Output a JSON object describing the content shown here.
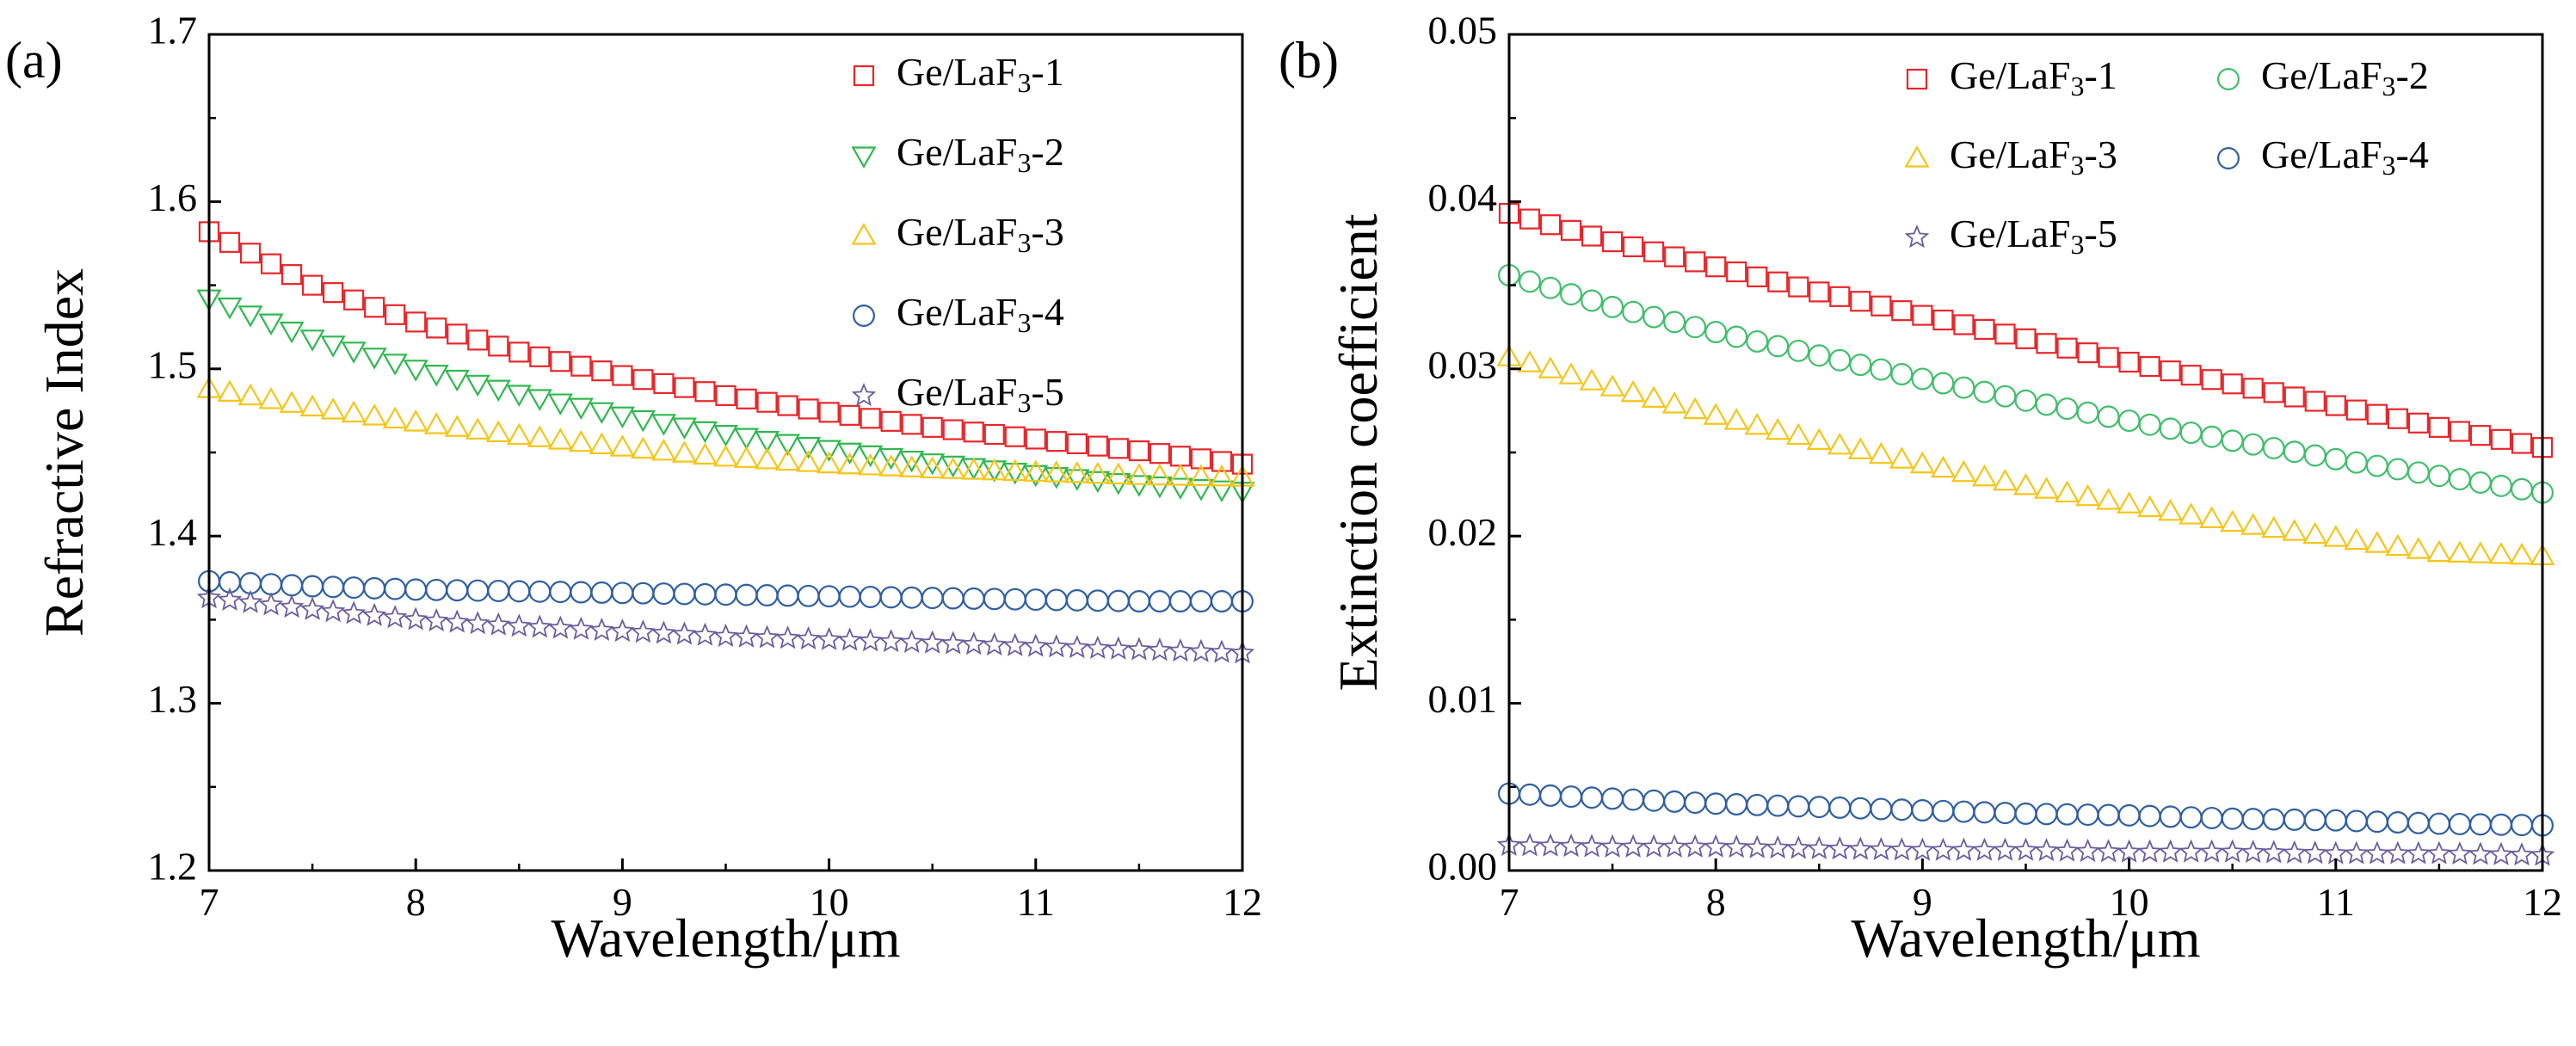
{
  "chart_data": [
    {
      "type": "scatter",
      "panel_label": "(a)",
      "xlabel": "Wavelength/μm",
      "ylabel": "Refractive Index",
      "xlim": [
        7,
        12
      ],
      "ylim": [
        1.2,
        1.7
      ],
      "xticks": [
        "7",
        "8",
        "9",
        "10",
        "11",
        "12"
      ],
      "yticks": [
        "1.2",
        "1.3",
        "1.4",
        "1.5",
        "1.6",
        "1.7"
      ],
      "legend_position": "top-right",
      "legend_columns": 1,
      "x": {
        "start": 7,
        "end": 12,
        "count": 51
      },
      "series": [
        {
          "name": "Ge/LaF3-1",
          "label_main": "Ge/LaF",
          "label_sub": "3",
          "label_suffix": "-1",
          "marker": "square",
          "color": "#e8262a",
          "values": [
            1.582,
            1.55,
            1.528,
            1.51,
            1.496,
            1.484,
            1.474,
            1.465,
            1.458,
            1.451,
            1.443
          ]
        },
        {
          "name": "Ge/LaF3-2",
          "label_main": "Ge/LaF",
          "label_sub": "3",
          "label_suffix": "-2",
          "marker": "triangle-down",
          "color": "#2fb84f",
          "values": [
            1.542,
            1.518,
            1.5,
            1.485,
            1.472,
            1.461,
            1.452,
            1.444,
            1.437,
            1.431,
            1.427
          ]
        },
        {
          "name": "Ge/LaF3-3",
          "label_main": "Ge/LaF",
          "label_sub": "3",
          "label_suffix": "-3",
          "marker": "triangle-up",
          "color": "#f5c518",
          "values": [
            1.488,
            1.477,
            1.468,
            1.46,
            1.453,
            1.447,
            1.443,
            1.44,
            1.438,
            1.436,
            1.435
          ]
        },
        {
          "name": "Ge/LaF3-4",
          "label_main": "Ge/LaF",
          "label_sub": "3",
          "label_suffix": "-4",
          "marker": "circle",
          "color": "#2f5fa3",
          "values": [
            1.373,
            1.37,
            1.368,
            1.367,
            1.366,
            1.365,
            1.364,
            1.363,
            1.362,
            1.361,
            1.361
          ]
        },
        {
          "name": "Ge/LaF3-5",
          "label_main": "Ge/LaF",
          "label_sub": "3",
          "label_suffix": "-5",
          "marker": "star",
          "color": "#6a5c9e",
          "values": [
            1.363,
            1.356,
            1.35,
            1.346,
            1.343,
            1.34,
            1.338,
            1.336,
            1.334,
            1.332,
            1.33
          ]
        }
      ]
    },
    {
      "type": "scatter",
      "panel_label": "(b)",
      "xlabel": "Wavelength/μm",
      "ylabel": "Extinction coefficient",
      "xlim": [
        7,
        12
      ],
      "ylim": [
        0,
        0.05
      ],
      "xticks": [
        "7",
        "8",
        "9",
        "10",
        "11",
        "12"
      ],
      "yticks": [
        "0.00",
        "0.01",
        "0.02",
        "0.03",
        "0.04",
        "0.05"
      ],
      "legend_position": "top-right",
      "legend_columns": 2,
      "x": {
        "start": 7,
        "end": 12,
        "count": 51
      },
      "series": [
        {
          "name": "Ge/LaF3-1",
          "label_main": "Ge/LaF",
          "label_sub": "3",
          "label_suffix": "-1",
          "marker": "square",
          "color": "#e8262a",
          "values": [
            0.0393,
            0.0376,
            0.0361,
            0.0346,
            0.0332,
            0.0318,
            0.0304,
            0.0291,
            0.0278,
            0.0265,
            0.0253
          ]
        },
        {
          "name": "Ge/LaF3-2",
          "label_main": "Ge/LaF",
          "label_sub": "3",
          "label_suffix": "-2",
          "marker": "circle",
          "color": "#3fbf6a",
          "values": [
            0.0356,
            0.0337,
            0.0322,
            0.0308,
            0.0294,
            0.0281,
            0.0269,
            0.0257,
            0.0246,
            0.0236,
            0.0226
          ]
        },
        {
          "name": "Ge/LaF3-3",
          "label_main": "Ge/LaF",
          "label_sub": "3",
          "label_suffix": "-3",
          "marker": "triangle-up",
          "color": "#f5c518",
          "values": [
            0.0307,
            0.0289,
            0.0272,
            0.0257,
            0.0243,
            0.023,
            0.0219,
            0.0208,
            0.0199,
            0.019,
            0.0188
          ]
        },
        {
          "name": "Ge/LaF3-4",
          "label_main": "Ge/LaF",
          "label_sub": "3",
          "label_suffix": "-4",
          "marker": "circle",
          "color": "#2f5fa3",
          "values": [
            0.0046,
            0.0043,
            0.004,
            0.0038,
            0.0036,
            0.0034,
            0.0033,
            0.0031,
            0.003,
            0.0028,
            0.0027
          ]
        },
        {
          "name": "Ge/LaF3-5",
          "label_main": "Ge/LaF",
          "label_sub": "3",
          "label_suffix": "-5",
          "marker": "star",
          "color": "#6a5c9e",
          "values": [
            0.0015,
            0.0014,
            0.0014,
            0.0013,
            0.0012,
            0.0012,
            0.0011,
            0.0011,
            0.001,
            0.001,
            0.0009
          ]
        }
      ]
    }
  ]
}
